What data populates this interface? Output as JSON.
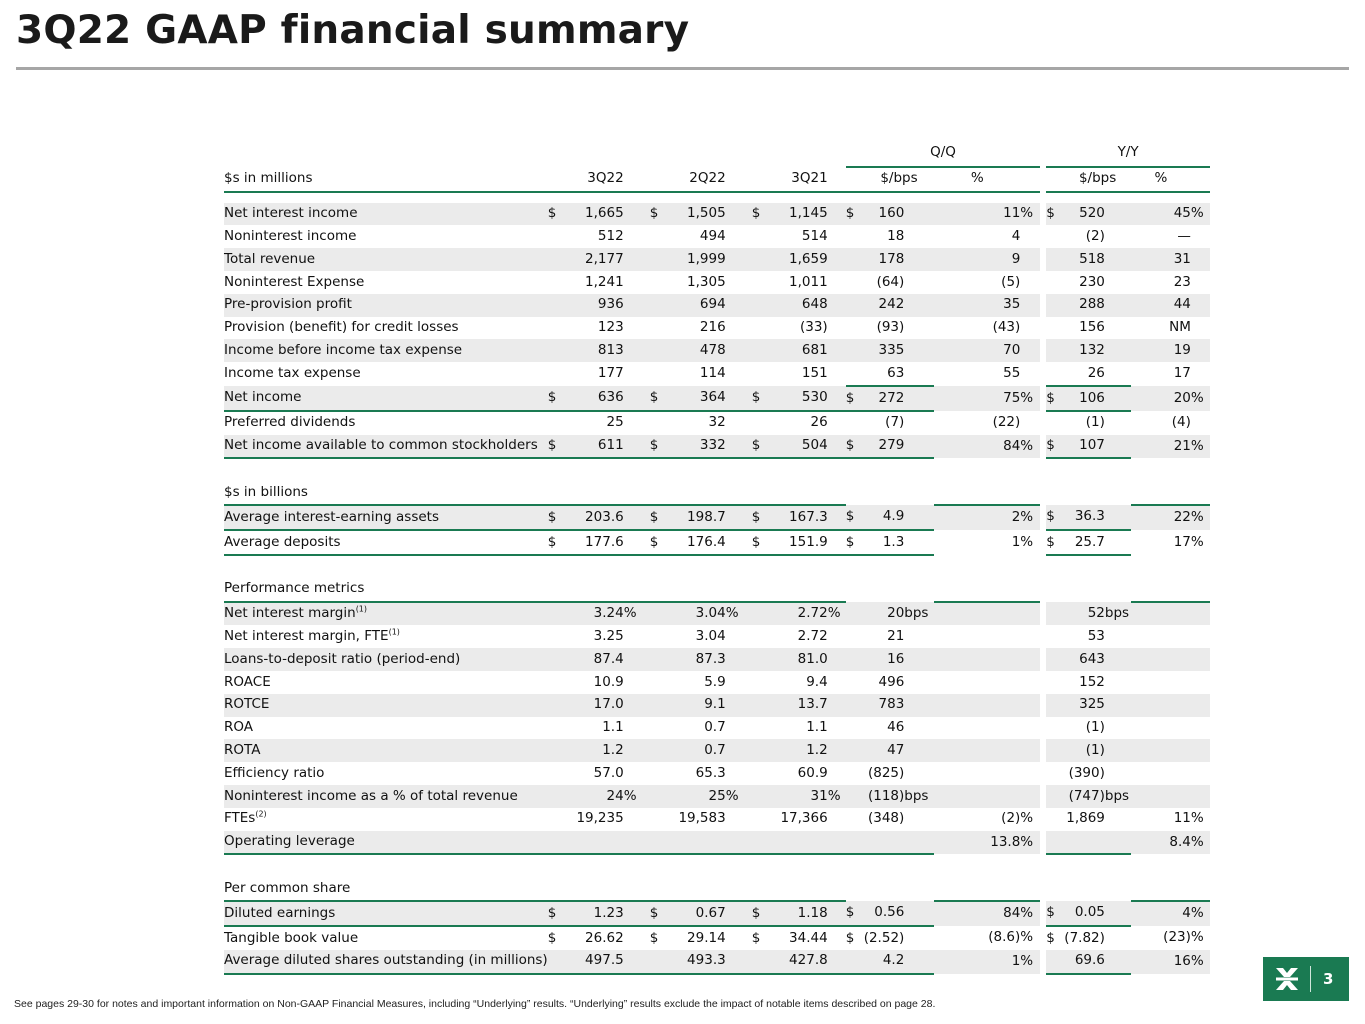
{
  "title": "3Q22 GAAP financial summary",
  "group_headers": {
    "qq": "Q/Q",
    "yy": "Y/Y"
  },
  "columns": {
    "label": "$s in millions",
    "p1": "3Q22",
    "p2": "2Q22",
    "p3": "3Q21",
    "qq_amt": "$/bps",
    "qq_pct": "%",
    "yy_amt": "$/bps",
    "yy_pct": "%"
  },
  "rows": [
    {
      "label": "Net interest income",
      "cur": [
        "$",
        "$",
        "$",
        "$",
        "",
        "$",
        ""
      ],
      "p1": "1,665",
      "p2": "1,505",
      "p3": "1,145",
      "qqa": "160",
      "qqp": "11",
      "qqs": "%",
      "yya": "520",
      "yyp": "45",
      "yys": "%"
    },
    {
      "label": "Noninterest income",
      "p1": "512",
      "p2": "494",
      "p3": "514",
      "qqa": "18",
      "qqp": "4",
      "yya": "(2)",
      "yyp": "—"
    },
    {
      "label": "Total revenue",
      "p1": "2,177",
      "p2": "1,999",
      "p3": "1,659",
      "qqa": "178",
      "qqp": "9",
      "yya": "518",
      "yyp": "31"
    },
    {
      "label": "Noninterest Expense",
      "p1": "1,241",
      "p2": "1,305",
      "p3": "1,011",
      "qqa": "(64)",
      "qqp": "(5)",
      "yya": "230",
      "yyp": "23"
    },
    {
      "label": "Pre-provision profit",
      "p1": "936",
      "p2": "694",
      "p3": "648",
      "qqa": "242",
      "qqp": "35",
      "yya": "288",
      "yyp": "44"
    },
    {
      "label": "Provision (benefit) for credit losses",
      "p1": "123",
      "p2": "216",
      "p3": "(33)",
      "qqa": "(93)",
      "qqp": "(43)",
      "yya": "156",
      "yyp": "NM"
    },
    {
      "label": "Income before income tax expense",
      "p1": "813",
      "p2": "478",
      "p3": "681",
      "qqa": "335",
      "qqp": "70",
      "yya": "132",
      "yyp": "19"
    },
    {
      "label": "Income tax expense",
      "p1": "177",
      "p2": "114",
      "p3": "151",
      "qqa": "63",
      "qqp": "55",
      "yya": "26",
      "yyp": "17"
    },
    {
      "label": "Net income",
      "p1": "636",
      "p2": "364",
      "p3": "530",
      "qqa": "272",
      "qqp": "75",
      "qqs": "%",
      "yya": "106",
      "yyp": "20",
      "yys": "%"
    },
    {
      "label": "Preferred dividends",
      "p1": "25",
      "p2": "32",
      "p3": "26",
      "qqa": "(7)",
      "qqp": "(22)",
      "yya": "(1)",
      "yyp": "(4)"
    },
    {
      "label": "Net income available to common stockholders",
      "p1": "611",
      "p2": "332",
      "p3": "504",
      "qqa": "279",
      "qqp": "84",
      "qqs": "%",
      "yya": "107",
      "yyp": "21",
      "yys": "%"
    },
    {
      "label": "$s in billions"
    },
    {
      "label": "Average interest-earning assets",
      "p1": "203.6",
      "p2": "198.7",
      "p3": "167.3",
      "qqa": "4.9",
      "qqp": "2",
      "qqs": "%",
      "yya": "36.3",
      "yyp": "22",
      "yys": "%"
    },
    {
      "label": "Average deposits",
      "p1": "177.6",
      "p2": "176.4",
      "p3": "151.9",
      "qqa": "1.3",
      "qqp": "1",
      "qqs": "%",
      "yya": "25.7",
      "yyp": "17",
      "yys": "%"
    },
    {
      "label": "Performance metrics"
    },
    {
      "label": "Net interest margin",
      "sup": "(1)",
      "p1": "3.24",
      "p1s": "%",
      "p2": "3.04",
      "p2s": "%",
      "p3": "2.72",
      "p3s": "%",
      "qqa": "20",
      "qqu": "bps",
      "yya": "52",
      "yyu": "bps"
    },
    {
      "label": "Net interest margin, FTE",
      "sup": "(1)",
      "p1": "3.25",
      "p2": "3.04",
      "p3": "2.72",
      "qqa": "21",
      "yya": "53"
    },
    {
      "label": "Loans-to-deposit ratio (period-end)",
      "p1": "87.4",
      "p2": "87.3",
      "p3": "81.0",
      "qqa": "16",
      "yya": "643"
    },
    {
      "label": "ROACE",
      "p1": "10.9",
      "p2": "5.9",
      "p3": "9.4",
      "qqa": "496",
      "yya": "152"
    },
    {
      "label": "ROTCE",
      "p1": "17.0",
      "p2": "9.1",
      "p3": "13.7",
      "qqa": "783",
      "yya": "325"
    },
    {
      "label": "ROA",
      "p1": "1.1",
      "p2": "0.7",
      "p3": "1.1",
      "qqa": "46",
      "yya": "(1)"
    },
    {
      "label": "ROTA",
      "p1": "1.2",
      "p2": "0.7",
      "p3": "1.2",
      "qqa": "47",
      "yya": "(1)"
    },
    {
      "label": "Efficiency ratio",
      "p1": "57.0",
      "p2": "65.3",
      "p3": "60.9",
      "qqa": "(825)",
      "yya": "(390)"
    },
    {
      "label": "Noninterest income as a % of total revenue",
      "p1": "24",
      "p1s": "%",
      "p2": "25",
      "p2s": "%",
      "p3": "31",
      "p3s": "%",
      "qqa": "(118)",
      "qqu": "bps",
      "yya": "(747)",
      "yyu": "bps"
    },
    {
      "label": "FTEs",
      "sup": "(2)",
      "p1": "19,235",
      "p2": "19,583",
      "p3": "17,366",
      "qqa": "(348)",
      "qqp": "(2)",
      "qqs": "%",
      "yya": "1,869",
      "yyp": "11",
      "yys": "%"
    },
    {
      "label": "Operating leverage",
      "qqp": "13.8",
      "qqs": "%",
      "yyp": "8.4",
      "yys": "%"
    },
    {
      "label": "Per common share"
    },
    {
      "label": "Diluted earnings",
      "p1": "1.23",
      "p2": "0.67",
      "p3": "1.18",
      "qqa": "0.56",
      "qqp": "84",
      "qqs": "%",
      "yya": "0.05",
      "yyp": "4",
      "yys": "%"
    },
    {
      "label": "Tangible book value",
      "p1": "26.62",
      "p2": "29.14",
      "p3": "34.44",
      "qqa": "(2.52)",
      "qqp": "(8.6)",
      "qqs": "%",
      "yya": "(7.82)",
      "yyp": "(23)",
      "yys": "%"
    },
    {
      "label": "Average diluted shares outstanding (in millions)",
      "p1": "497.5",
      "p2": "493.3",
      "p3": "427.8",
      "qqa": "4.2",
      "qqp": "1",
      "qqs": "%",
      "yya": "69.6",
      "yyp": "16",
      "yys": "%"
    }
  ],
  "currency_symbol": "$",
  "footnote": "See pages 29-30 for notes and important information on Non-GAAP Financial Measures, including “Underlying” results. “Underlying” results exclude the impact of notable items described on page 28.",
  "page_number": "3",
  "brand_color": "#1a7a52"
}
